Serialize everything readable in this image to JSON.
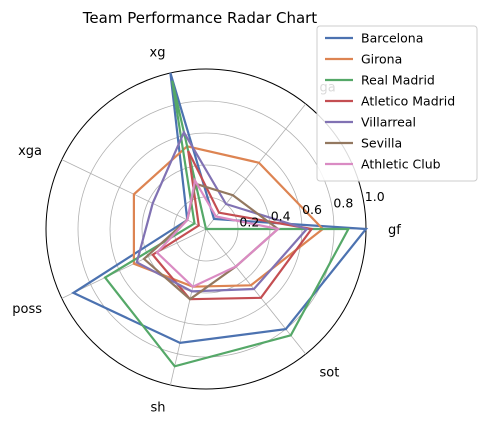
{
  "chart_data": {
    "type": "radar",
    "title": "Team Performance Radar Chart",
    "axes": [
      "gf",
      "ga",
      "xg",
      "xga",
      "poss",
      "sh",
      "sot"
    ],
    "r_ticks": [
      "0.2",
      "0.4",
      "0.6",
      "0.8",
      "1.0"
    ],
    "rlim": [
      0,
      1.0
    ],
    "grid": true,
    "legend_position": "top-right",
    "series": [
      {
        "name": "Barcelona",
        "color": "#4c72b0",
        "values": [
          1.0,
          0.08,
          1.0,
          0.13,
          0.92,
          0.73,
          0.8
        ]
      },
      {
        "name": "Girona",
        "color": "#dd8452",
        "values": [
          0.73,
          0.53,
          0.53,
          0.5,
          0.5,
          0.37,
          0.45
        ]
      },
      {
        "name": "Real Madrid",
        "color": "#55a868",
        "values": [
          0.89,
          0.0,
          0.95,
          0.08,
          0.7,
          0.88,
          0.85
        ]
      },
      {
        "name": "Atletico Madrid",
        "color": "#c44e52",
        "values": [
          0.66,
          0.13,
          0.5,
          0.05,
          0.37,
          0.45,
          0.55
        ]
      },
      {
        "name": "Villarreal",
        "color": "#8172b3",
        "values": [
          0.63,
          0.2,
          0.62,
          0.37,
          0.48,
          0.4,
          0.48
        ]
      },
      {
        "name": "Sevilla",
        "color": "#937860",
        "values": [
          0.45,
          0.27,
          0.29,
          0.13,
          0.43,
          0.45,
          0.3
        ]
      },
      {
        "name": "Athletic Club",
        "color": "#da8bc3",
        "values": [
          0.45,
          0.1,
          0.31,
          0.13,
          0.34,
          0.37,
          0.3
        ]
      }
    ]
  }
}
